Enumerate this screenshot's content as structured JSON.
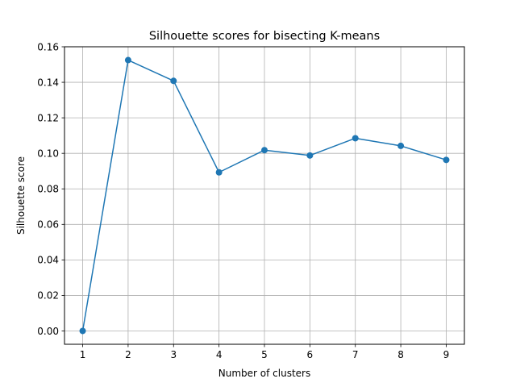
{
  "chart_data": {
    "type": "line",
    "title": "Silhouette scores for bisecting K-means",
    "xlabel": "Number of clusters",
    "ylabel": "Silhouette score",
    "x": [
      1,
      2,
      3,
      4,
      5,
      6,
      7,
      8,
      9
    ],
    "series": [
      {
        "values": [
          0.0,
          0.1525,
          0.1408,
          0.0893,
          0.1018,
          0.0988,
          0.1085,
          0.1042,
          0.0963
        ]
      }
    ],
    "xlim": [
      0.6,
      9.4
    ],
    "ylim": [
      -0.0075,
      0.16
    ],
    "xticks": [
      "1",
      "2",
      "3",
      "4",
      "5",
      "6",
      "7",
      "8",
      "9"
    ],
    "yticks": [
      "0.00",
      "0.02",
      "0.04",
      "0.06",
      "0.08",
      "0.10",
      "0.12",
      "0.14",
      "0.16"
    ],
    "ytick_values": [
      0,
      0.02,
      0.04,
      0.06,
      0.08,
      0.1,
      0.12,
      0.14,
      0.16
    ],
    "grid": true,
    "markers": true,
    "line_color": "#1f77b4",
    "grid_color": "#b0b0b0"
  }
}
